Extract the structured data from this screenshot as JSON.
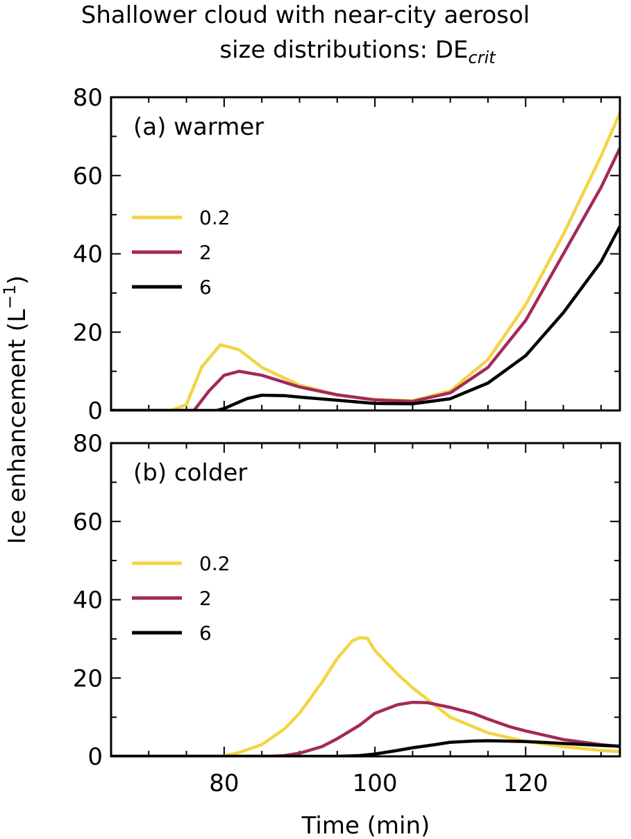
{
  "chart_data": {
    "type": "line",
    "title_line1": "Shallower cloud with near-city aerosol",
    "title_line2": "size distributions: DE",
    "title_sub": "crit",
    "xlabel": "Time (min)",
    "ylabel": "Ice enhancement (L",
    "ylabel_sup": "−1",
    "ylabel_end": ")",
    "xlim": [
      65,
      132.5
    ],
    "ylim": [
      0,
      80
    ],
    "xticks": [
      80,
      100,
      120
    ],
    "yticks": [
      0,
      20,
      40,
      60,
      80
    ],
    "colors": {
      "0.2": "#f3d444",
      "2": "#a3295a",
      "6": "#000000"
    },
    "panels": [
      {
        "label": "(a) warmer",
        "series": [
          {
            "name": "0.2",
            "x": [
              65,
              73,
              75,
              77,
              79.5,
              82,
              85,
              90,
              95,
              100,
              105,
              110,
              115,
              120,
              125,
              130,
              132.5
            ],
            "y": [
              0,
              0,
              1.5,
              11,
              16.8,
              15.5,
              11,
              6.5,
              4,
              2.8,
              2.5,
              5,
              13,
              27,
              45,
              65,
              76
            ]
          },
          {
            "name": "2",
            "x": [
              65,
              76,
              78,
              80,
              82,
              85,
              90,
              95,
              100,
              105,
              110,
              115,
              120,
              125,
              130,
              132.5
            ],
            "y": [
              0,
              0,
              5,
              9,
              10,
              9,
              6,
              4,
              2.7,
              2.3,
              4.5,
              11,
              23,
              40,
              57,
              67
            ]
          },
          {
            "name": "6",
            "x": [
              65,
              79,
              80,
              83,
              85,
              88,
              90,
              95,
              100,
              105,
              110,
              115,
              120,
              125,
              130,
              132.5
            ],
            "y": [
              0,
              0,
              0.5,
              3,
              3.9,
              3.8,
              3.4,
              2.6,
              1.8,
              1.7,
              3,
              7,
              14,
              25,
              38,
              47
            ]
          }
        ]
      },
      {
        "label": "(b) colder",
        "series": [
          {
            "name": "0.2",
            "x": [
              65,
              79,
              80,
              82,
              85,
              88,
              90,
              93,
              95,
              97,
              98,
              99,
              100,
              103,
              105,
              108,
              110,
              115,
              120,
              125,
              130,
              132.5
            ],
            "y": [
              0,
              0,
              0.1,
              1,
              3,
              7,
              11,
              19,
              25,
              29.5,
              30.3,
              30.2,
              27,
              21,
              17.5,
              13,
              10,
              6,
              3.8,
              2.5,
              1.5,
              1.2
            ]
          },
          {
            "name": "2",
            "x": [
              65,
              86,
              88,
              90,
              93,
              95,
              98,
              100,
              103,
              105,
              107,
              110,
              113,
              115,
              118,
              120,
              125,
              130,
              132.5
            ],
            "y": [
              0,
              0,
              0.2,
              0.8,
              2.5,
              4.5,
              8,
              11,
              13.2,
              13.8,
              13.7,
              12.5,
              11,
              9.5,
              7.5,
              6.5,
              4.3,
              3,
              2.5
            ]
          },
          {
            "name": "6",
            "x": [
              65,
              95,
              98,
              100,
              103,
              105,
              108,
              110,
              113,
              115,
              120,
              125,
              130,
              132.5
            ],
            "y": [
              0,
              0,
              0.2,
              0.6,
              1.5,
              2.2,
              3,
              3.6,
              3.9,
              4,
              3.8,
              3.3,
              2.8,
              2.6
            ]
          }
        ]
      }
    ]
  }
}
